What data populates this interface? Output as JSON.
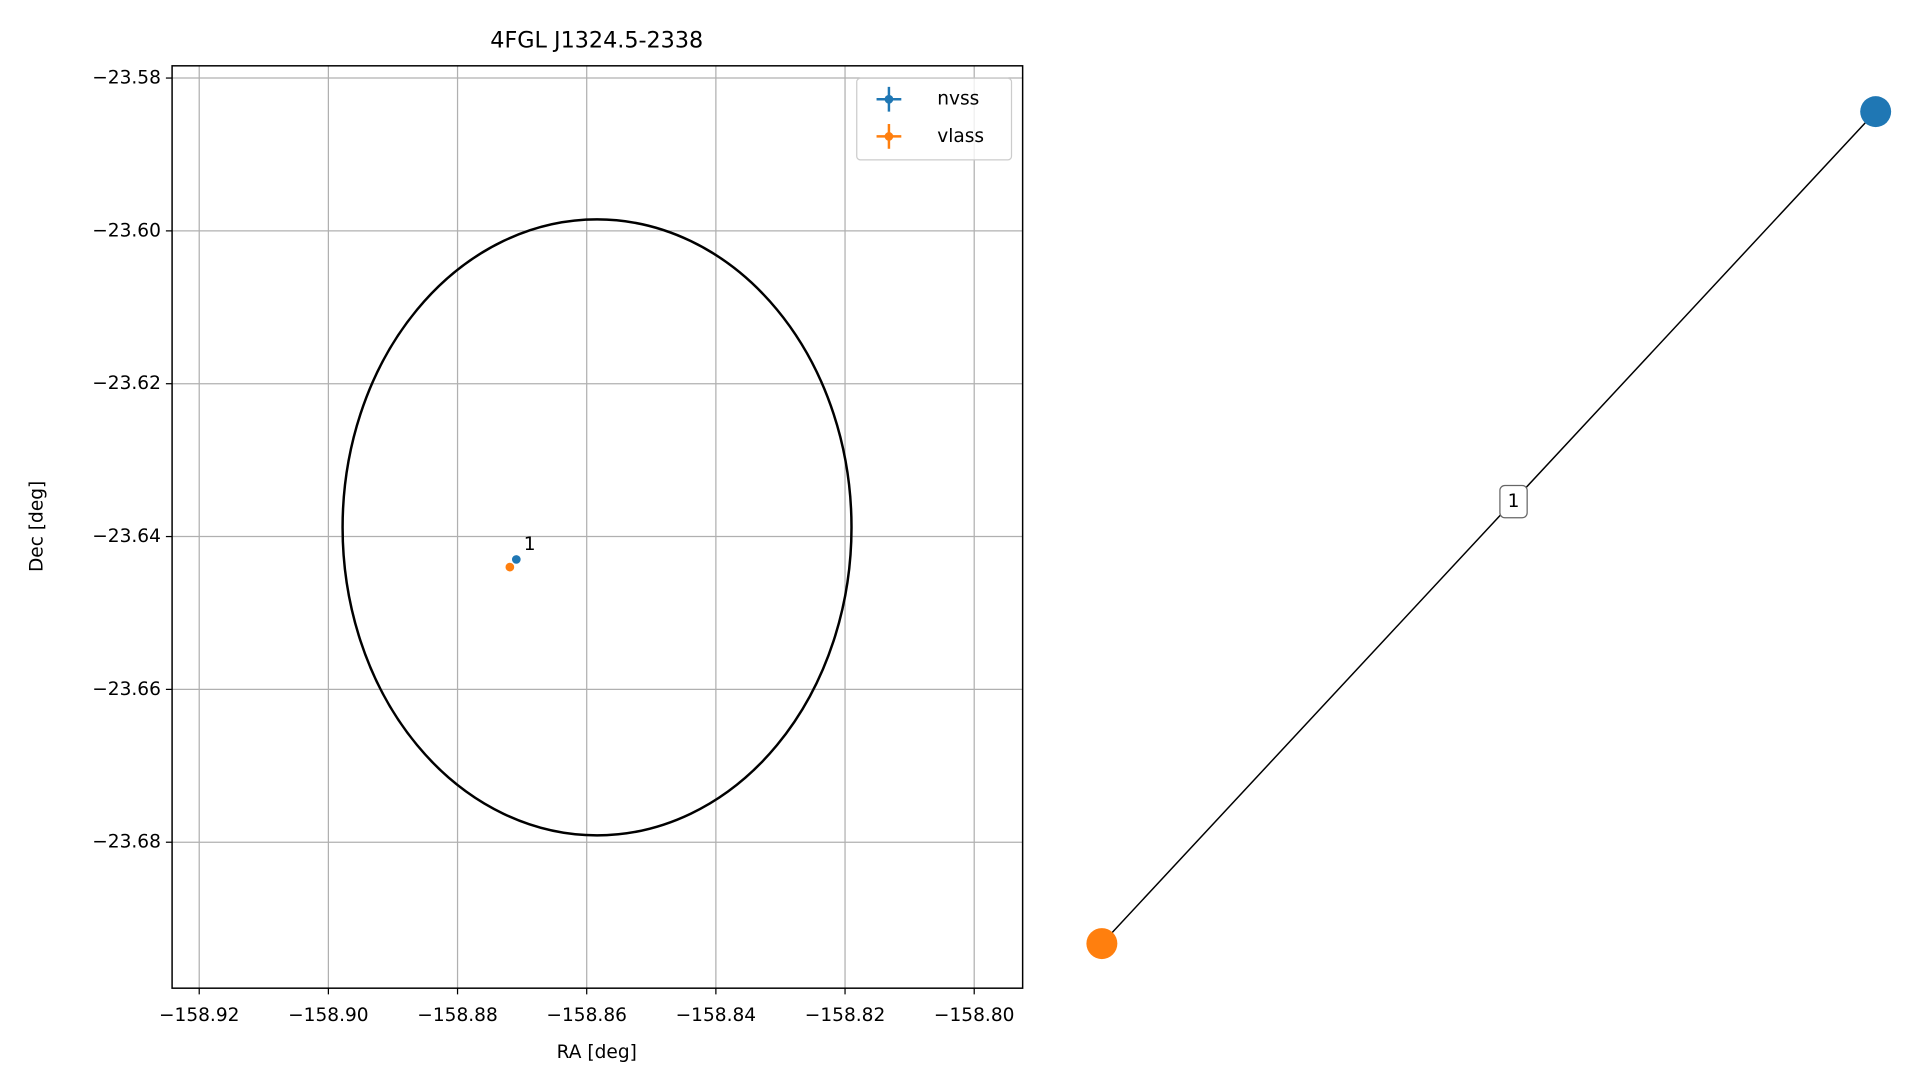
{
  "chart_data": [
    {
      "type": "scatter",
      "title": "4FGL J1324.5-2338",
      "x_label": "RA [deg]",
      "y_label": "Dec [deg]",
      "xlim": [
        -158.9242,
        -158.7925
      ],
      "ylim": [
        -23.6991,
        -23.5784
      ],
      "xticks": [
        {
          "value": -158.92,
          "label": "−158.92"
        },
        {
          "value": -158.9,
          "label": "−158.90"
        },
        {
          "value": -158.88,
          "label": "−158.88"
        },
        {
          "value": -158.86,
          "label": "−158.86"
        },
        {
          "value": -158.84,
          "label": "−158.84"
        },
        {
          "value": -158.82,
          "label": "−158.82"
        },
        {
          "value": -158.8,
          "label": "−158.80"
        }
      ],
      "yticks": [
        {
          "value": -23.58,
          "label": "−23.58"
        },
        {
          "value": -23.6,
          "label": "−23.60"
        },
        {
          "value": -23.62,
          "label": "−23.62"
        },
        {
          "value": -23.64,
          "label": "−23.64"
        },
        {
          "value": -23.66,
          "label": "−23.66"
        },
        {
          "value": -23.68,
          "label": "−23.68"
        }
      ],
      "grid": true,
      "legend": "upper right",
      "series": [
        {
          "name": "nvss",
          "color": "#1f77b4",
          "x": [
            -158.8709
          ],
          "values": [
            -23.643
          ],
          "labels": [
            "1"
          ]
        },
        {
          "name": "vlass",
          "color": "#ff7f0e",
          "x": [
            -158.8719
          ],
          "values": [
            -23.644
          ]
        }
      ],
      "ellipse": {
        "center_x": -158.8584,
        "center_y": -23.6388,
        "half_width": 0.0394,
        "half_height": 0.0403,
        "color": "#000000"
      }
    },
    {
      "type": "network",
      "nodes": [
        {
          "color": "#1f77b4"
        },
        {
          "color": "#ff7f0e"
        }
      ],
      "edges": [
        {
          "source": 0,
          "target": 1,
          "label": "1"
        }
      ]
    }
  ]
}
